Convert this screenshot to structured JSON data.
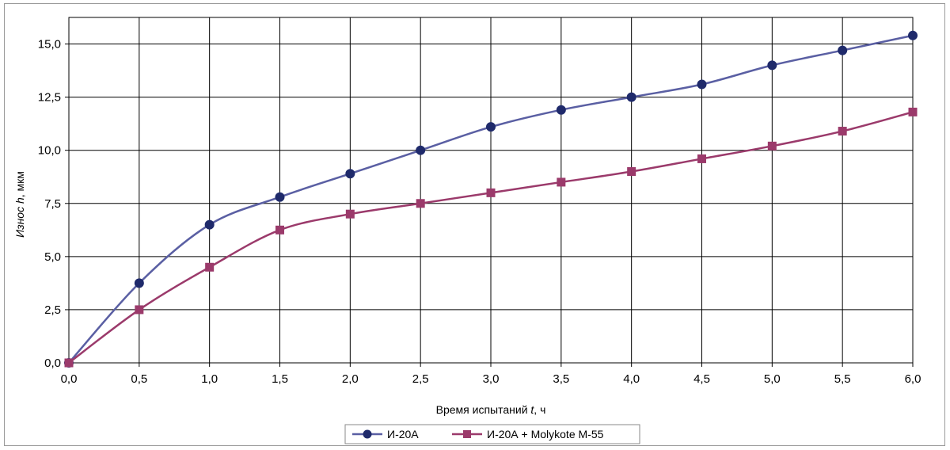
{
  "chart_data": {
    "type": "line",
    "title": "",
    "xlabel_parts": {
      "before": "Время испытаний ",
      "var": "t",
      "after": ", ч"
    },
    "ylabel_parts": {
      "before": "Износ ",
      "var": "h",
      "after": ", мкм"
    },
    "xlim": [
      0,
      6
    ],
    "ylim": [
      0,
      16.25
    ],
    "x_ticks": [
      "0,0",
      "0,5",
      "1,0",
      "1,5",
      "2,0",
      "2,5",
      "3,0",
      "3,5",
      "4,0",
      "4,5",
      "5,0",
      "5,5",
      "6,0"
    ],
    "y_ticks": [
      "0,0",
      "2,5",
      "5,0",
      "7,5",
      "10,0",
      "12,5",
      "15,0"
    ],
    "grid": true,
    "legend_position": "bottom",
    "x": [
      0,
      0.5,
      1.0,
      1.5,
      2.0,
      2.5,
      3.0,
      3.5,
      4.0,
      4.5,
      5.0,
      5.5,
      6.0
    ],
    "series": [
      {
        "name": "И-20А",
        "color": "#5a5fa3",
        "marker": "circle",
        "values": [
          0,
          3.75,
          6.5,
          7.8,
          8.9,
          10.0,
          11.1,
          11.9,
          12.5,
          13.1,
          14.0,
          14.7,
          15.4
        ]
      },
      {
        "name": "И-20А + Molykote M-55",
        "color": "#9b3a6b",
        "marker": "square",
        "values": [
          0,
          2.5,
          4.5,
          6.25,
          7.0,
          7.5,
          8.0,
          8.5,
          9.0,
          9.6,
          10.2,
          10.9,
          11.8
        ]
      }
    ]
  }
}
